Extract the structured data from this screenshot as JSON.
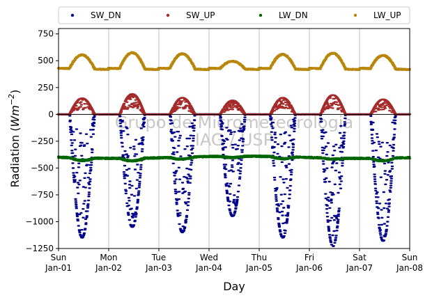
{
  "chart_data": {
    "type": "scatter",
    "xlabel": "Day",
    "ylabel": "Radiation (Wm⁻²)",
    "ylabel_parts": {
      "main": "Radiation (",
      "unit": "Wm",
      "exponent": "−2",
      "close": ")"
    },
    "watermark": [
      "Grupo de Micrometeorologia",
      "IAG / USP"
    ],
    "ylim": [
      -1250,
      800
    ],
    "yticks": [
      800,
      750,
      500,
      250,
      0,
      -250,
      -500,
      -750,
      -1000,
      -1250
    ],
    "ytick_labels": [
      "750",
      "500",
      "250",
      "0",
      "−250",
      "−500",
      "−750",
      "−1000",
      "−1250"
    ],
    "ytick_values": [
      750,
      500,
      250,
      0,
      -250,
      -500,
      -750,
      -1000,
      -1250
    ],
    "xlim": [
      0,
      7
    ],
    "xticks": [
      {
        "day": 0,
        "weekday": "Sun",
        "date": "Jan-01"
      },
      {
        "day": 1,
        "weekday": "Mon",
        "date": "Jan-02"
      },
      {
        "day": 2,
        "weekday": "Tue",
        "date": "Jan-03"
      },
      {
        "day": 3,
        "weekday": "Wed",
        "date": "Jan-04"
      },
      {
        "day": 4,
        "weekday": "Thu",
        "date": "Jan-05"
      },
      {
        "day": 5,
        "weekday": "Fri",
        "date": "Jan-06"
      },
      {
        "day": 6,
        "weekday": "Sat",
        "date": "Jan-07"
      },
      {
        "day": 7,
        "weekday": "Sun",
        "date": "Jan-08"
      }
    ],
    "grid": "vertical at day boundaries",
    "zero_line": true,
    "legend_position": "top, above plot, one row",
    "series": [
      {
        "name": "SW_DN",
        "color": "#00008b",
        "baseline": 0,
        "daily_peak": [
          -1150,
          -1050,
          -1100,
          -950,
          -1150,
          -1230,
          -1180
        ],
        "description_values": "≈0 at night; daytime values fall to about −1000 to −1230"
      },
      {
        "name": "SW_UP",
        "color": "#a52a2a",
        "baseline": 0,
        "daily_peak": [
          150,
          190,
          155,
          130,
          155,
          180,
          140
        ],
        "description_values": "≈0 at night; daytime values rise to about 130–190"
      },
      {
        "name": "LW_DN",
        "color": "#006400",
        "baseline": -400,
        "daily_peak": [
          -440,
          -440,
          -430,
          -420,
          -430,
          -415,
          -440
        ],
        "description_values": "roughly constant between about −370 and −450"
      },
      {
        "name": "LW_UP",
        "color": "#b8860b",
        "baseline": 425,
        "daily_peak": [
          560,
          580,
          570,
          500,
          565,
          575,
          555
        ],
        "description_values": "≈420–440 at night; daytime maxima about 500–590"
      }
    ]
  }
}
